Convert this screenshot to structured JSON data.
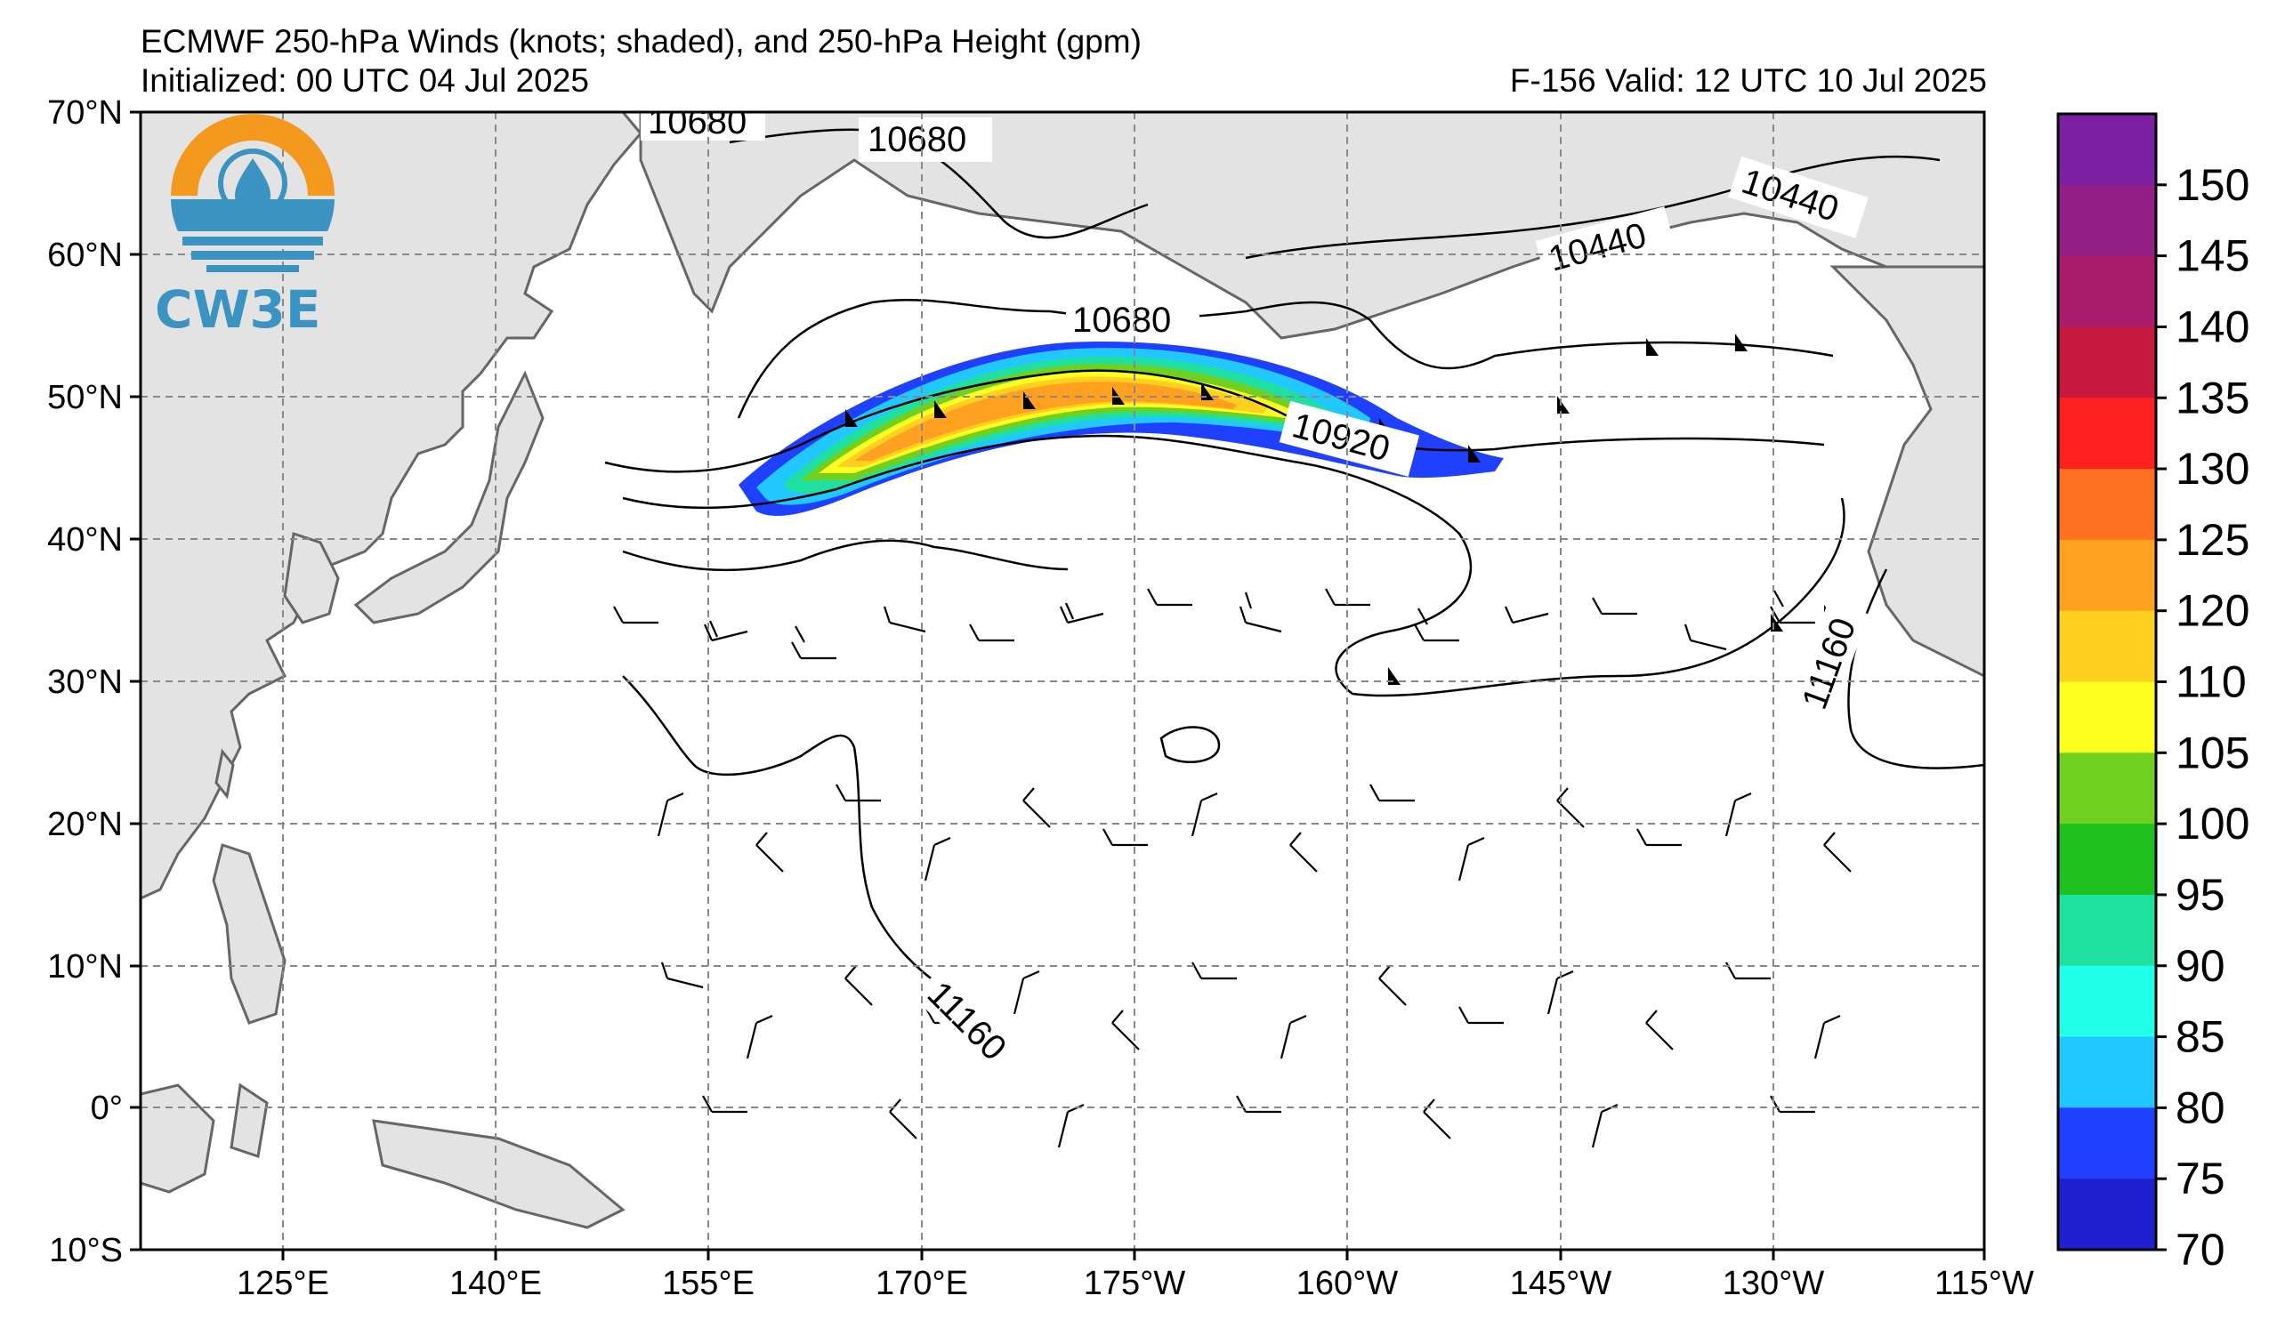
{
  "header": {
    "title": "ECMWF 250-hPa Winds (knots; shaded), and 250-hPa Height (gpm)",
    "initialized": "Initialized: 00 UTC 04 Jul 2025",
    "valid": "F-156  Valid: 12 UTC 10 Jul 2025"
  },
  "logo": {
    "text": "CW3E",
    "colors": {
      "sun": "#f39a1e",
      "water": "#3a93c0"
    }
  },
  "map": {
    "lat_labels": [
      "70°N",
      "60°N",
      "50°N",
      "40°N",
      "30°N",
      "20°N",
      "10°N",
      "0°",
      "10°S"
    ],
    "lon_labels": [
      "125°E",
      "140°E",
      "155°E",
      "170°E",
      "175°W",
      "160°W",
      "145°W",
      "130°W",
      "115°W"
    ],
    "land_color": "#e3e3e3",
    "coast_color": "#666666",
    "grid_style": "dashed gray"
  },
  "height_contours": {
    "labels": [
      "10680",
      "10680",
      "10680",
      "10440",
      "10440",
      "10920",
      "11160",
      "11160"
    ]
  },
  "colorbar": {
    "labels": [
      "150",
      "145",
      "140",
      "135",
      "130",
      "125",
      "120",
      "110",
      "105",
      "100",
      "95",
      "90",
      "85",
      "80",
      "75",
      "70"
    ],
    "colors": [
      "#7a1fa2",
      "#931e86",
      "#a91c6c",
      "#c81a40",
      "#ff2020",
      "#ff7020",
      "#ffa020",
      "#ffd020",
      "#ffff20",
      "#70d020",
      "#20c020",
      "#20e0a0",
      "#20ffe8",
      "#20c8ff",
      "#2040ff",
      "#2020d0"
    ]
  },
  "jet_colors": {
    "outer": "#2040ff",
    "cyan": "#20c8ff",
    "teal": "#20e0a0",
    "green": "#20c020",
    "lime": "#70d020",
    "yellow": "#ffff20",
    "gold": "#ffd020",
    "orange": "#ffa020",
    "deep": "#ff7020"
  }
}
